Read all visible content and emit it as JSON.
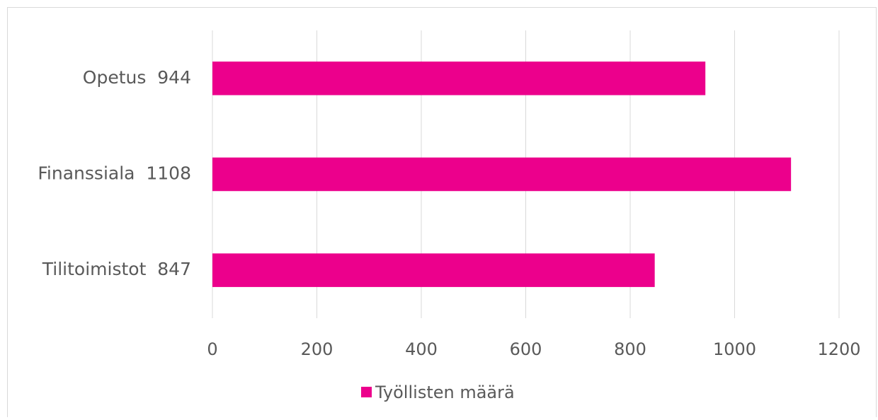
{
  "chart_data": {
    "type": "bar",
    "horizontal": true,
    "categories": [
      "Opetus  944",
      "Finanssiala  1108",
      "Tilitoimistot  847"
    ],
    "series": [
      {
        "name": "Työllisten määrä",
        "color": "#ec008c",
        "values": [
          944,
          1108,
          847
        ]
      }
    ],
    "xlim": [
      0,
      1200
    ],
    "xticks": [
      0,
      200,
      400,
      600,
      800,
      1000,
      1200
    ],
    "grid": true,
    "legend": "bottom"
  }
}
